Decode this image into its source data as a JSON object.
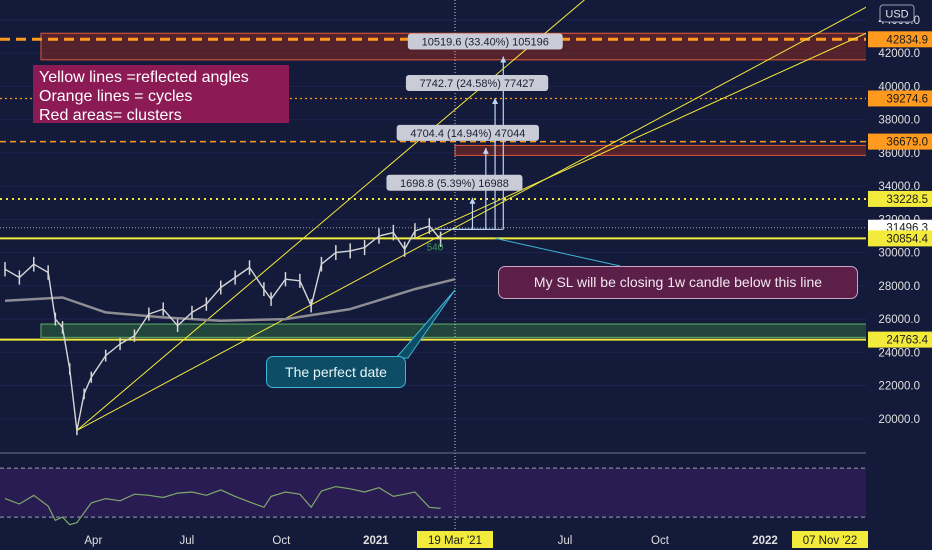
{
  "currency": "USD",
  "colors": {
    "background": "#131a3a",
    "yellow": "#f3eb3c",
    "orange": "#ff9a1f",
    "red_area": "#8a2a1e",
    "green_area": "#2f6b3c",
    "price": "#d6d6d6",
    "ma": "#8d8d92",
    "rsi": "#7fa86b",
    "label_bg": "#c9ccd6",
    "arrow": "#bcd6f5"
  },
  "chart_data": {
    "type": "line",
    "series": [
      {
        "x": [
          "2020-01-06",
          "2020-01-20",
          "2020-02-03",
          "2020-02-17",
          "2020-02-24",
          "2020-03-02",
          "2020-03-09",
          "2020-03-16",
          "2020-03-23",
          "2020-03-30",
          "2020-04-13",
          "2020-04-27",
          "2020-05-11",
          "2020-05-25",
          "2020-06-08",
          "2020-06-22",
          "2020-07-06",
          "2020-07-20",
          "2020-08-03",
          "2020-08-17",
          "2020-08-31",
          "2020-09-14",
          "2020-09-21",
          "2020-10-05",
          "2020-10-19",
          "2020-10-30",
          "2020-11-09",
          "2020-11-23",
          "2020-12-07",
          "2020-12-21",
          "2021-01-04",
          "2021-01-18",
          "2021-01-29",
          "2021-02-08",
          "2021-02-22",
          "2021-03-05"
        ],
        "values": [
          29000,
          28500,
          29300,
          28800,
          26000,
          25500,
          23000,
          19300,
          21500,
          22500,
          23800,
          24500,
          25000,
          26300,
          26600,
          25600,
          26400,
          26900,
          27900,
          28500,
          29100,
          27800,
          27200,
          28400,
          28300,
          26800,
          29300,
          30000,
          30100,
          30300,
          31000,
          31200,
          30200,
          31300,
          31600,
          30800
        ]
      },
      {
        "x": [
          "2020-01-06",
          "2020-03-02",
          "2020-04-13",
          "2020-06-08",
          "2020-08-03",
          "2020-10-05",
          "2020-12-07",
          "2021-02-08",
          "2021-03-19"
        ],
        "values": [
          27100,
          27300,
          26400,
          26100,
          25900,
          26000,
          26600,
          27800,
          28400
        ]
      }
    ],
    "x_ticks": [
      "Apr",
      "Jul",
      "Oct",
      "2021",
      "19 Mar '21",
      "Jul",
      "Oct",
      "2022",
      "07 Nov '22"
    ],
    "y_ticks": [
      20000,
      22000,
      24000,
      26000,
      28000,
      30000,
      32000,
      34000,
      36000,
      38000,
      40000,
      42000,
      44000
    ],
    "ylim": [
      18000,
      45200
    ],
    "price_labels": [
      {
        "value": 42834.9,
        "kind": "orange"
      },
      {
        "value": 39274.6,
        "kind": "orange"
      },
      {
        "value": 36679.0,
        "kind": "orange"
      },
      {
        "value": 33228.5,
        "kind": "yellow"
      },
      {
        "value": 31496.3,
        "kind": "white"
      },
      {
        "value": 30854.4,
        "kind": "yellow"
      },
      {
        "value": 24763.4,
        "kind": "yellow"
      }
    ],
    "target_labels": [
      "10519.6 (33.40%) 105196",
      "7742.7 (24.58%) 77427",
      "4704.4 (14.94%) 47044",
      "1698.8 (5.39%) 16988"
    ],
    "small_label": "540",
    "rsi": {
      "ylim": [
        25,
        92
      ],
      "ticks": [
        40.0,
        80.0
      ],
      "levels": [
        35,
        80
      ],
      "values": [
        52,
        47,
        55,
        45,
        32,
        35,
        28,
        30,
        39,
        48,
        52,
        50,
        56,
        55,
        53,
        57,
        58,
        55,
        60,
        54,
        49,
        44,
        54,
        58,
        56,
        44,
        59,
        63,
        61,
        58,
        62,
        54,
        56,
        58,
        44,
        43
      ]
    },
    "annotations": [
      {
        "text": "Yellow lines =reflected angles"
      },
      {
        "text": "Orange lines = cycles"
      },
      {
        "text": "Red areas= clusters"
      },
      {
        "text": "My SL will be closing 1w candle below this line"
      },
      {
        "text": "The perfect date"
      }
    ]
  }
}
